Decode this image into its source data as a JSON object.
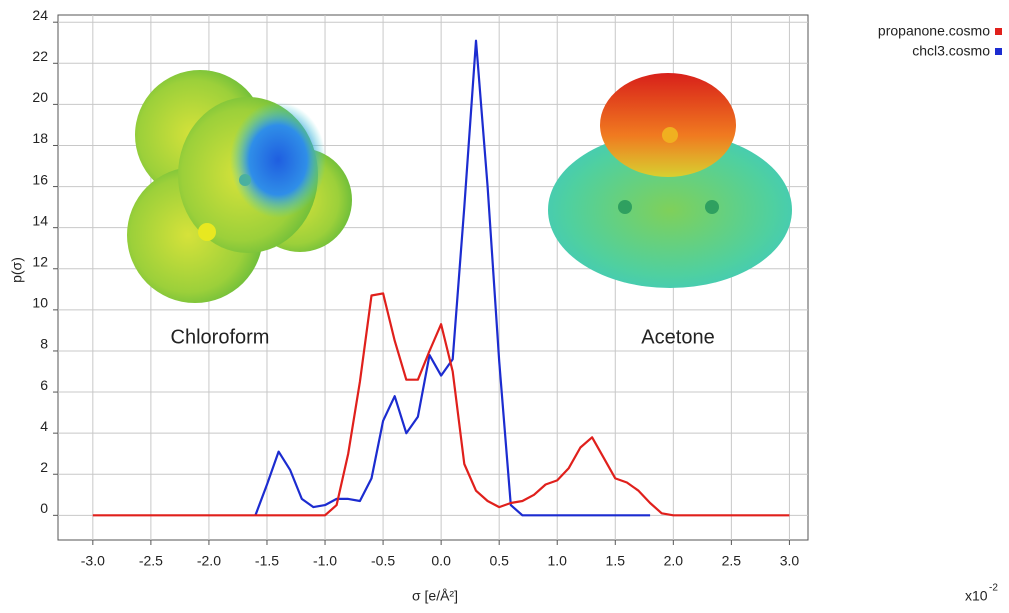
{
  "chart_data": {
    "type": "line",
    "x_label": "σ [e/Å²]",
    "y_label": "p(σ)",
    "axis_multiplier": {
      "base": "x10",
      "exponent": "-2"
    },
    "annotations": [
      "Chloroform",
      "Acetone"
    ],
    "x": [
      -3.0,
      -2.9,
      -2.8,
      -2.7,
      -2.6,
      -2.5,
      -2.4,
      -2.3,
      -2.2,
      -2.1,
      -2.0,
      -1.9,
      -1.8,
      -1.7,
      -1.6,
      -1.5,
      -1.4,
      -1.3,
      -1.2,
      -1.1,
      -1.0,
      -0.9,
      -0.8,
      -0.7,
      -0.6,
      -0.5,
      -0.4,
      -0.3,
      -0.2,
      -0.1,
      0.0,
      0.1,
      0.2,
      0.3,
      0.4,
      0.5,
      0.6,
      0.7,
      0.8,
      0.9,
      1.0,
      1.1,
      1.2,
      1.3,
      1.4,
      1.5,
      1.6,
      1.7,
      1.8,
      1.9,
      2.0,
      2.1,
      2.2,
      2.3,
      2.4,
      2.5,
      2.6,
      2.7,
      2.8,
      2.9,
      3.0
    ],
    "series": [
      {
        "name": "propanone.cosmo",
        "color": "#e0201c",
        "values": [
          0,
          0,
          0,
          0,
          0,
          0,
          0,
          0,
          0,
          0,
          0,
          0,
          0,
          0,
          0,
          0,
          0,
          0,
          0,
          0,
          0,
          0.5,
          3,
          6.5,
          10.7,
          10.8,
          8.5,
          6.6,
          6.6,
          8,
          9.3,
          7,
          2.5,
          1.2,
          0.7,
          0.4,
          0.6,
          0.7,
          1,
          1.5,
          1.7,
          2.3,
          3.3,
          3.8,
          2.8,
          1.8,
          1.6,
          1.2,
          0.6,
          0.1,
          0,
          0,
          0,
          0,
          0,
          0,
          0,
          0,
          0,
          0,
          0
        ]
      },
      {
        "name": "chcl3.cosmo",
        "color": "#1c2cd0",
        "values": [
          null,
          null,
          null,
          null,
          null,
          null,
          null,
          null,
          null,
          null,
          null,
          null,
          null,
          null,
          0,
          1.5,
          3.1,
          2.2,
          0.8,
          0.4,
          0.5,
          0.8,
          0.8,
          0.7,
          1.8,
          4.6,
          5.8,
          4,
          4.8,
          7.8,
          6.8,
          7.6,
          15,
          23.1,
          16,
          7.5,
          0.5,
          0,
          0,
          0,
          0,
          0,
          0,
          0,
          0,
          0,
          0,
          0,
          0,
          null,
          null,
          null,
          null,
          null,
          null,
          null,
          null,
          null,
          null,
          null,
          null
        ]
      }
    ],
    "xlim": [
      -3.3,
      3.16
    ],
    "ylim": [
      -1.2,
      24.35
    ],
    "xticks": [
      {
        "value": -3,
        "label": "-3.0"
      },
      -2.5,
      {
        "value": -2,
        "label": "-2.0"
      },
      -1.5,
      {
        "value": -1,
        "label": "-1.0"
      },
      -0.5,
      {
        "value": 0,
        "label": "0.0"
      },
      0.5,
      {
        "value": 1,
        "label": "1.0"
      },
      1.5,
      {
        "value": 2,
        "label": "2.0"
      },
      2.5,
      {
        "value": 3,
        "label": "3.0"
      }
    ],
    "yticks": [
      0,
      2,
      4,
      6,
      8,
      10,
      12,
      14,
      16,
      18,
      20,
      22,
      24
    ],
    "grid": true,
    "legend": "top-right"
  }
}
